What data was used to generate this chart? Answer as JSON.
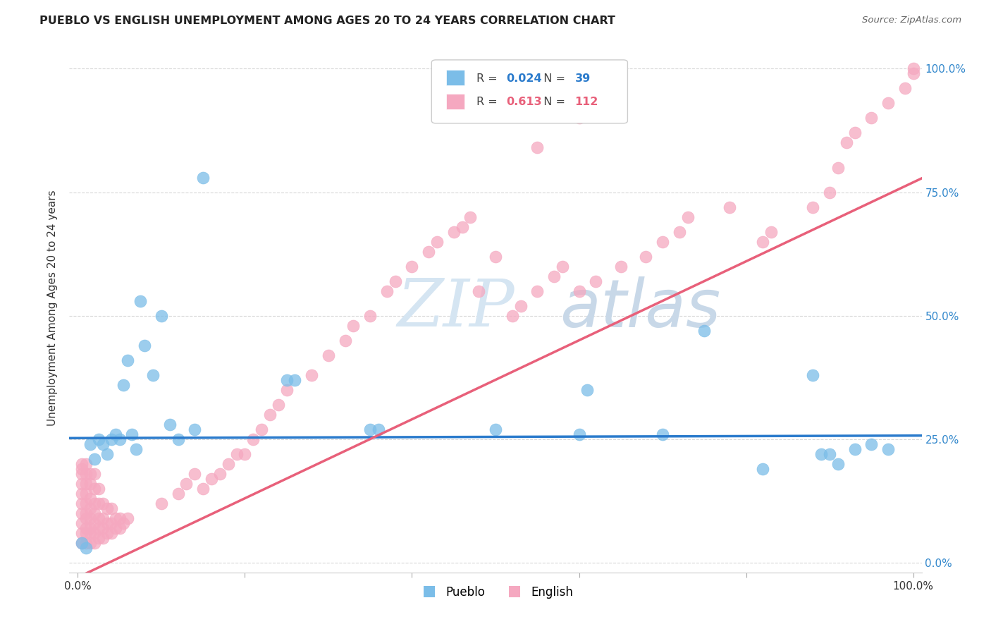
{
  "title": "PUEBLO VS ENGLISH UNEMPLOYMENT AMONG AGES 20 TO 24 YEARS CORRELATION CHART",
  "source": "Source: ZipAtlas.com",
  "ylabel": "Unemployment Among Ages 20 to 24 years",
  "ytick_values": [
    0.0,
    0.25,
    0.5,
    0.75,
    1.0
  ],
  "ytick_labels": [
    "0.0%",
    "25.0%",
    "50.0%",
    "75.0%",
    "100.0%"
  ],
  "legend_pueblo": "Pueblo",
  "legend_english": "English",
  "pueblo_R": "0.024",
  "pueblo_N": "39",
  "english_R": "0.613",
  "english_N": "112",
  "pueblo_color": "#7bbde8",
  "english_color": "#f5a8c0",
  "pueblo_line_color": "#2b7bcc",
  "english_line_color": "#e8607a",
  "watermark_zip_color": "#d5e5f2",
  "watermark_atlas_color": "#c8d8e8",
  "background_color": "#ffffff",
  "grid_color": "#d8d8d8",
  "pueblo_x": [
    0.005,
    0.01,
    0.015,
    0.02,
    0.025,
    0.03,
    0.035,
    0.04,
    0.045,
    0.05,
    0.055,
    0.06,
    0.065,
    0.07,
    0.075,
    0.08,
    0.09,
    0.1,
    0.11,
    0.12,
    0.14,
    0.15,
    0.25,
    0.26,
    0.35,
    0.36,
    0.5,
    0.6,
    0.61,
    0.7,
    0.75,
    0.82,
    0.88,
    0.89,
    0.9,
    0.91,
    0.93,
    0.95,
    0.97
  ],
  "pueblo_y": [
    0.04,
    0.03,
    0.24,
    0.21,
    0.25,
    0.24,
    0.22,
    0.25,
    0.26,
    0.25,
    0.36,
    0.41,
    0.26,
    0.23,
    0.53,
    0.44,
    0.38,
    0.5,
    0.28,
    0.25,
    0.27,
    0.78,
    0.37,
    0.37,
    0.27,
    0.27,
    0.27,
    0.26,
    0.35,
    0.26,
    0.47,
    0.19,
    0.38,
    0.22,
    0.22,
    0.2,
    0.23,
    0.24,
    0.23
  ],
  "english_x": [
    0.005,
    0.005,
    0.005,
    0.005,
    0.005,
    0.005,
    0.005,
    0.005,
    0.005,
    0.005,
    0.01,
    0.01,
    0.01,
    0.01,
    0.01,
    0.01,
    0.01,
    0.01,
    0.01,
    0.01,
    0.015,
    0.015,
    0.015,
    0.015,
    0.015,
    0.015,
    0.015,
    0.015,
    0.02,
    0.02,
    0.02,
    0.02,
    0.02,
    0.02,
    0.02,
    0.025,
    0.025,
    0.025,
    0.025,
    0.025,
    0.03,
    0.03,
    0.03,
    0.03,
    0.035,
    0.035,
    0.035,
    0.04,
    0.04,
    0.04,
    0.045,
    0.045,
    0.05,
    0.05,
    0.055,
    0.06,
    0.1,
    0.12,
    0.13,
    0.14,
    0.15,
    0.16,
    0.17,
    0.18,
    0.19,
    0.2,
    0.21,
    0.22,
    0.23,
    0.24,
    0.25,
    0.28,
    0.3,
    0.32,
    0.33,
    0.35,
    0.37,
    0.38,
    0.4,
    0.42,
    0.43,
    0.45,
    0.46,
    0.47,
    0.48,
    0.5,
    0.52,
    0.53,
    0.55,
    0.57,
    0.58,
    0.6,
    0.62,
    0.65,
    0.68,
    0.7,
    0.72,
    0.73,
    0.78,
    0.82,
    0.83,
    0.88,
    0.9,
    0.91,
    0.92,
    0.93,
    0.95,
    0.97,
    0.99,
    1.0,
    1.0,
    0.55,
    0.6
  ],
  "english_y": [
    0.04,
    0.06,
    0.08,
    0.1,
    0.12,
    0.14,
    0.16,
    0.18,
    0.19,
    0.2,
    0.04,
    0.06,
    0.07,
    0.09,
    0.1,
    0.12,
    0.14,
    0.16,
    0.18,
    0.2,
    0.04,
    0.06,
    0.07,
    0.09,
    0.11,
    0.13,
    0.16,
    0.18,
    0.04,
    0.06,
    0.08,
    0.1,
    0.12,
    0.15,
    0.18,
    0.05,
    0.07,
    0.09,
    0.12,
    0.15,
    0.05,
    0.07,
    0.09,
    0.12,
    0.06,
    0.08,
    0.11,
    0.06,
    0.08,
    0.11,
    0.07,
    0.09,
    0.07,
    0.09,
    0.08,
    0.09,
    0.12,
    0.14,
    0.16,
    0.18,
    0.15,
    0.17,
    0.18,
    0.2,
    0.22,
    0.22,
    0.25,
    0.27,
    0.3,
    0.32,
    0.35,
    0.38,
    0.42,
    0.45,
    0.48,
    0.5,
    0.55,
    0.57,
    0.6,
    0.63,
    0.65,
    0.67,
    0.68,
    0.7,
    0.55,
    0.62,
    0.5,
    0.52,
    0.55,
    0.58,
    0.6,
    0.55,
    0.57,
    0.6,
    0.62,
    0.65,
    0.67,
    0.7,
    0.72,
    0.65,
    0.67,
    0.72,
    0.75,
    0.8,
    0.85,
    0.87,
    0.9,
    0.93,
    0.96,
    0.99,
    1.0,
    0.84,
    0.9
  ]
}
